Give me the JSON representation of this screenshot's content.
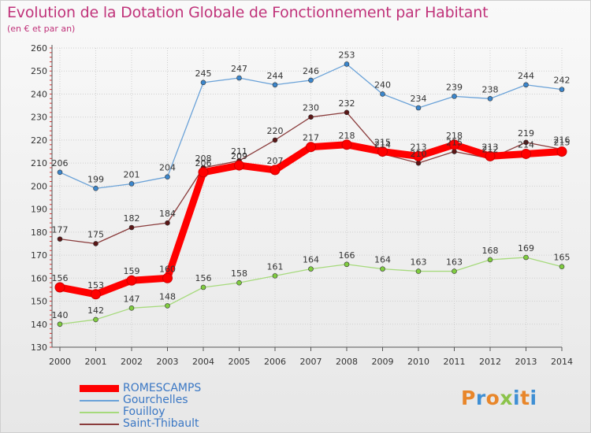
{
  "header": {
    "title": "Evolution de la Dotation Globale de Fonctionnement par Habitant",
    "subtitle": "(en € et par an)"
  },
  "logo": {
    "text": "Proxiti",
    "colors": [
      "#e8862a",
      "#3f8fd4",
      "#e8862a",
      "#8bc34a",
      "#3f8fd4",
      "#e8862a",
      "#3f8fd4"
    ]
  },
  "chart_data": {
    "type": "line",
    "x": [
      "2000",
      "2001",
      "2002",
      "2003",
      "2004",
      "2005",
      "2006",
      "2007",
      "2008",
      "2009",
      "2010",
      "2011",
      "2012",
      "2013",
      "2014"
    ],
    "ylim": [
      130,
      260
    ],
    "y_ticks": [
      130,
      140,
      150,
      160,
      170,
      180,
      190,
      200,
      210,
      220,
      230,
      240,
      250,
      260
    ],
    "grid": true,
    "legend_position": "bottom-left",
    "series": [
      {
        "name": "ROMESCAMPS",
        "color": "#ff0000",
        "marker_color": "#ff0000",
        "emphasis": true,
        "values": [
          156,
          153,
          159,
          160,
          206,
          209,
          207,
          217,
          218,
          215,
          213,
          218,
          213,
          214,
          215
        ]
      },
      {
        "name": "Gourchelles",
        "color": "#6aa2d8",
        "marker_color": "#3b86cc",
        "values": [
          206,
          199,
          201,
          204,
          245,
          247,
          244,
          246,
          253,
          240,
          234,
          239,
          238,
          244,
          242
        ]
      },
      {
        "name": "Fouilloy",
        "color": "#a6da7c",
        "marker_color": "#7fcc3f",
        "values": [
          140,
          142,
          147,
          148,
          156,
          158,
          161,
          164,
          166,
          164,
          163,
          163,
          168,
          169,
          165
        ]
      },
      {
        "name": "Saint-Thibault",
        "color": "#8a3c3c",
        "marker_color": "#5a1616",
        "values": [
          177,
          175,
          182,
          184,
          208,
          211,
          220,
          230,
          232,
          214,
          210,
          215,
          212,
          219,
          216
        ]
      }
    ]
  }
}
